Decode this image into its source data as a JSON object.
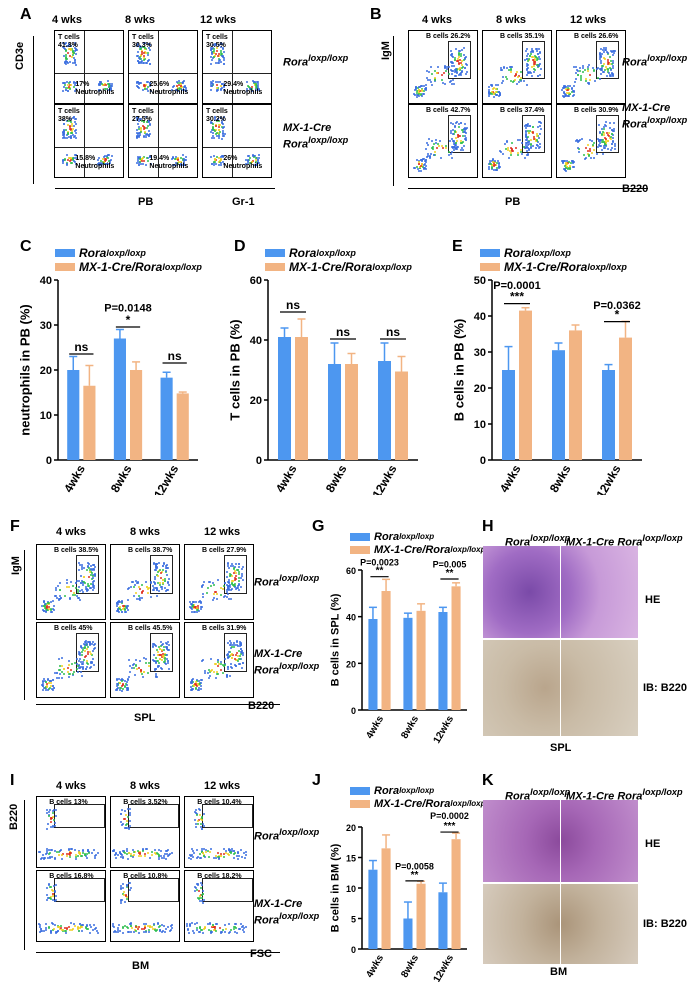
{
  "colors": {
    "control": "#4d97f0",
    "ko": "#f2b483"
  },
  "panels": {
    "A": "A",
    "B": "B",
    "C": "C",
    "D": "D",
    "E": "E",
    "F": "F",
    "G": "G",
    "H": "H",
    "I": "I",
    "J": "J",
    "K": "K"
  },
  "timepoints": [
    "4 wks",
    "8 wks",
    "12 wks"
  ],
  "genotypes": {
    "control_line1": "Rora",
    "control_sup": "loxp/loxp",
    "ko_line1": "MX-1-Cre",
    "ko_line2": "Rora",
    "ko_sup": "loxp/loxp",
    "ko_inline": "MX-1-Cre Rora"
  },
  "flow_A": {
    "yaxis": "CD3e",
    "tissue": "PB",
    "xaxis": "Gr-1",
    "rows": [
      {
        "t": [
          "T cells\n41.3%",
          "T cells\n30.3%",
          "T cells\n30.5%"
        ],
        "n": [
          "17%\nNeutrophils",
          "25.6%\nNeutrophils",
          "29.4%\nNeutrophils"
        ]
      },
      {
        "t": [
          "T cells\n38%",
          "T cells\n27.5%",
          "T cells\n30.2%"
        ],
        "n": [
          "15.8%\nNeutrophils",
          "19.4%\nNeutrophils",
          "26%\nNeutrophils"
        ]
      }
    ]
  },
  "flow_B": {
    "yaxis": "IgM",
    "tissue": "PB",
    "xaxis": "B220",
    "rows": [
      [
        "B cells 26.2%",
        "B cells 35.1%",
        "B cells 26.6%"
      ],
      [
        "B cells 42.7%",
        "B cells 37.4%",
        "B cells 30.9%"
      ]
    ]
  },
  "flow_F": {
    "yaxis": "IgM",
    "tissue": "SPL",
    "xaxis": "B220",
    "rows": [
      [
        "B cells 38.5%",
        "B cells 38.7%",
        "B cells 27.9%"
      ],
      [
        "B cells 45%",
        "B cells 45.5%",
        "B cells 31.9%"
      ]
    ]
  },
  "flow_I": {
    "yaxis": "B220",
    "tissue": "BM",
    "xaxis": "FSC",
    "rows": [
      [
        "B cells 13%",
        "B cells 3.52%",
        "B cells 10.4%"
      ],
      [
        "B cells 16.8%",
        "B cells 10.8%",
        "B cells 18.2%"
      ]
    ]
  },
  "histology_H": {
    "stain1": "HE",
    "stain2": "IB: B220",
    "tissue": "SPL"
  },
  "histology_K": {
    "stain1": "HE",
    "stain2": "IB: B220",
    "tissue": "BM"
  },
  "chart_data": [
    {
      "panel": "C",
      "type": "bar",
      "ylabel": "neutrophils in PB (%)",
      "ylim": [
        0,
        40
      ],
      "yticks": [
        "0",
        "10",
        "20",
        "30",
        "40"
      ],
      "categories": [
        "4wks",
        "8wks",
        "12wks"
      ],
      "series": [
        {
          "name": "Rora loxp/loxp",
          "values": [
            20,
            27,
            18.3
          ],
          "errors": [
            3,
            2,
            1.2
          ]
        },
        {
          "name": "MX-1-Cre/Rora loxp/loxp",
          "values": [
            16.5,
            20,
            14.8
          ],
          "errors": [
            4.5,
            1.8,
            0.3
          ]
        }
      ],
      "annotations": [
        {
          "group": 0,
          "text": "ns",
          "top": 24
        },
        {
          "group": 1,
          "text": "*",
          "top": 30
        },
        {
          "group": 1,
          "text": "P=0.0148",
          "top": 33
        },
        {
          "group": 2,
          "text": "ns",
          "top": 22
        }
      ]
    },
    {
      "panel": "D",
      "type": "bar",
      "ylabel": "T cells in PB (%)",
      "ylim": [
        0,
        60
      ],
      "yticks": [
        "0",
        "20",
        "40",
        "60"
      ],
      "categories": [
        "4wks",
        "8wks",
        "12wks"
      ],
      "series": [
        {
          "name": "Rora loxp/loxp",
          "values": [
            41,
            32,
            33
          ],
          "errors": [
            3,
            7,
            6
          ]
        },
        {
          "name": "MX-1-Cre/Rora loxp/loxp",
          "values": [
            41,
            32,
            29.5
          ],
          "errors": [
            6,
            3.5,
            5
          ]
        }
      ],
      "annotations": [
        {
          "group": 0,
          "text": "ns",
          "top": 50
        },
        {
          "group": 1,
          "text": "ns",
          "top": 41
        },
        {
          "group": 2,
          "text": "ns",
          "top": 41
        }
      ]
    },
    {
      "panel": "E",
      "type": "bar",
      "ylabel": "B cells in PB (%)",
      "ylim": [
        0,
        50
      ],
      "yticks": [
        "0",
        "10",
        "20",
        "30",
        "40",
        "50"
      ],
      "categories": [
        "4wks",
        "8wks",
        "12wks"
      ],
      "series": [
        {
          "name": "Rora loxp/loxp",
          "values": [
            25,
            30.5,
            25
          ],
          "errors": [
            6.5,
            2,
            1.5
          ]
        },
        {
          "name": "MX-1-Cre/Rora loxp/loxp",
          "values": [
            41.5,
            36,
            34
          ],
          "errors": [
            0.8,
            1.5,
            4.5
          ]
        }
      ],
      "annotations": [
        {
          "group": 0,
          "text": "***",
          "top": 44
        },
        {
          "group": 0,
          "text": "P=0.0001",
          "top": 47.5
        },
        {
          "group": 2,
          "text": "*",
          "top": 39
        },
        {
          "group": 2,
          "text": "P=0.0362",
          "top": 42
        }
      ]
    },
    {
      "panel": "G",
      "type": "bar",
      "ylabel": "B cells in SPL (%)",
      "ylim": [
        0,
        60
      ],
      "yticks": [
        "0",
        "20",
        "40",
        "60"
      ],
      "categories": [
        "4wks",
        "8wks",
        "12wks"
      ],
      "series": [
        {
          "name": "Rora loxp/loxp",
          "values": [
            39,
            39.5,
            42
          ],
          "errors": [
            5,
            2,
            2
          ]
        },
        {
          "name": "MX-1-Cre/Rora loxp/loxp",
          "values": [
            51,
            42.5,
            53
          ],
          "errors": [
            5,
            3,
            1.5
          ]
        }
      ],
      "annotations": [
        {
          "group": 0,
          "text": "**",
          "top": 58
        },
        {
          "group": 0,
          "text": "P=0.0023",
          "top": 62
        },
        {
          "group": 2,
          "text": "**",
          "top": 57
        },
        {
          "group": 2,
          "text": "P=0.005",
          "top": 61
        }
      ]
    },
    {
      "panel": "J",
      "type": "bar",
      "ylabel": "B cells in BM (%)",
      "ylim": [
        0,
        20
      ],
      "yticks": [
        "0",
        "5",
        "10",
        "15",
        "20"
      ],
      "categories": [
        "4wks",
        "8wks",
        "12wks"
      ],
      "series": [
        {
          "name": "Rora loxp/loxp",
          "values": [
            13,
            5,
            9.3
          ],
          "errors": [
            1.5,
            2.7,
            1.5
          ]
        },
        {
          "name": "MX-1-Cre/Rora loxp/loxp",
          "values": [
            16.5,
            10.7,
            18
          ],
          "errors": [
            2.2,
            0.4,
            1
          ]
        }
      ],
      "annotations": [
        {
          "group": 1,
          "text": "**",
          "top": 11.5
        },
        {
          "group": 1,
          "text": "P=0.0058",
          "top": 13
        },
        {
          "group": 2,
          "text": "***",
          "top": 19.5
        },
        {
          "group": 2,
          "text": "P=0.0002",
          "top": 21.3
        }
      ]
    }
  ]
}
